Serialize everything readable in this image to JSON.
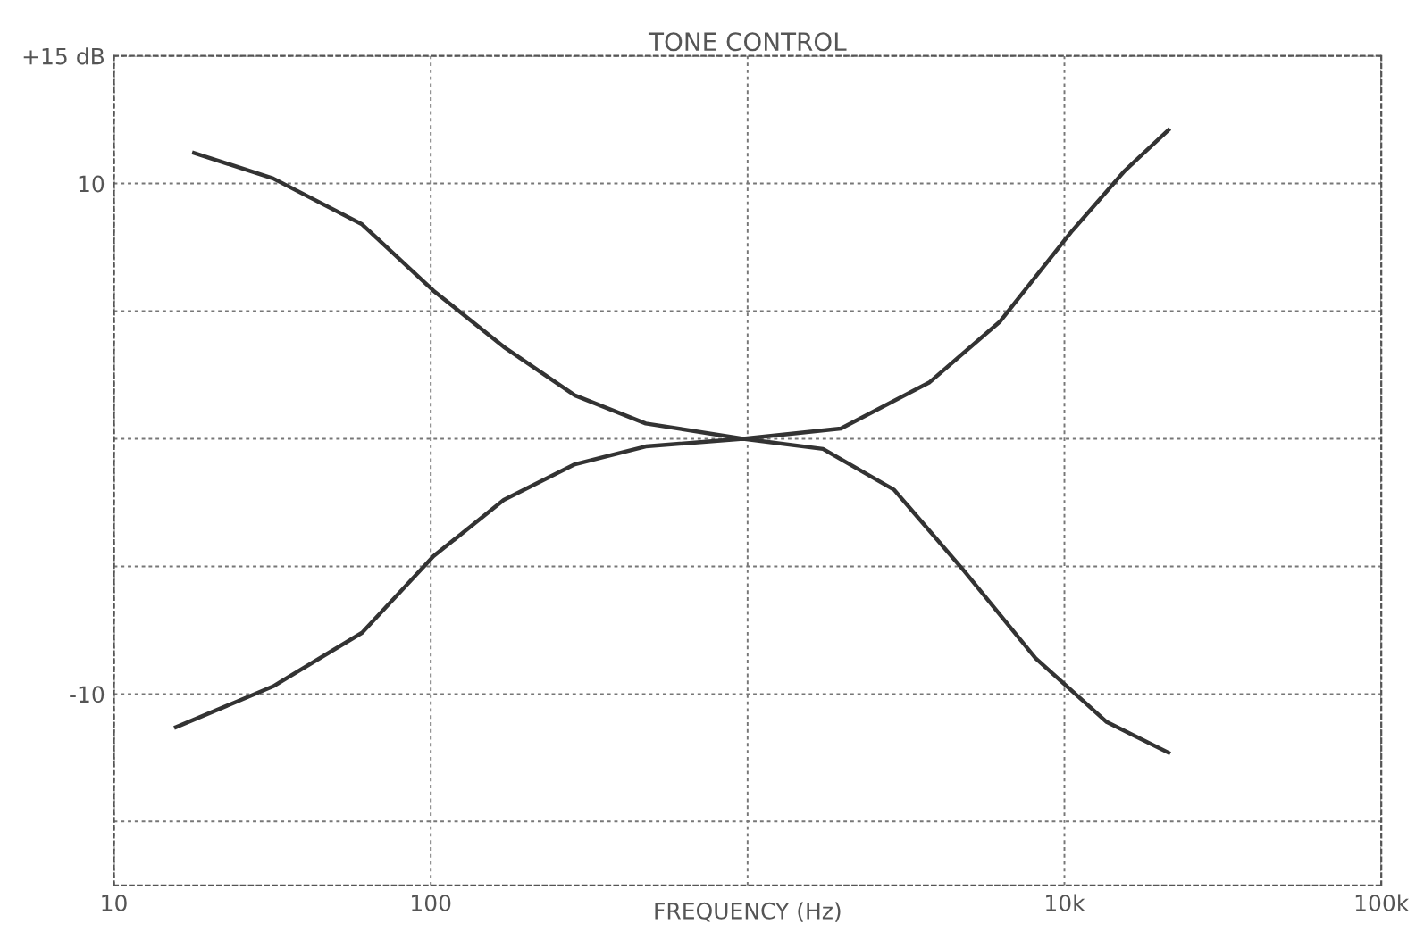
{
  "chart_data": {
    "type": "line",
    "title": "TONE CONTROL",
    "xlabel": "FREQUENCY (Hz)",
    "log": "x",
    "xlim": [
      10,
      100000
    ],
    "xticks": [
      10,
      100,
      {
        "value": 1000,
        "label": null
      },
      {
        "value": 10000,
        "label": "10k"
      },
      {
        "value": 100000,
        "label": "100k"
      }
    ],
    "ylim": [
      -17.5,
      15
    ],
    "yticks": [
      {
        "value": 15,
        "label": "+15 dB"
      },
      10,
      {
        "value": 5,
        "label": null
      },
      {
        "value": 0,
        "label": null
      },
      {
        "value": -5,
        "label": null
      },
      -10,
      {
        "value": -15,
        "label": null
      }
    ],
    "grid": true,
    "marker": "none",
    "line_style": "solid",
    "series": [
      {
        "color": "#333333",
        "x": [
          17.9,
          31.8,
          60.7,
          102,
          170,
          285,
          477,
          968,
          1970,
          3740,
          6270,
          10500,
          15500,
          21300
        ],
        "values": [
          11.2,
          10.2,
          8.4,
          5.8,
          3.6,
          1.7,
          0.6,
          0,
          0.4,
          2.2,
          4.6,
          8.1,
          10.5,
          12.1
        ]
      },
      {
        "color": "#333333",
        "x": [
          15.7,
          31.8,
          60.7,
          102,
          170,
          285,
          477,
          968,
          1730,
          2900,
          4840,
          8110,
          13600,
          21300
        ],
        "values": [
          -11.3,
          -9.7,
          -7.6,
          -4.6,
          -2.4,
          -1.0,
          -0.3,
          0,
          -0.4,
          -2.0,
          -5.2,
          -8.6,
          -11.1,
          -12.3
        ]
      }
    ]
  }
}
